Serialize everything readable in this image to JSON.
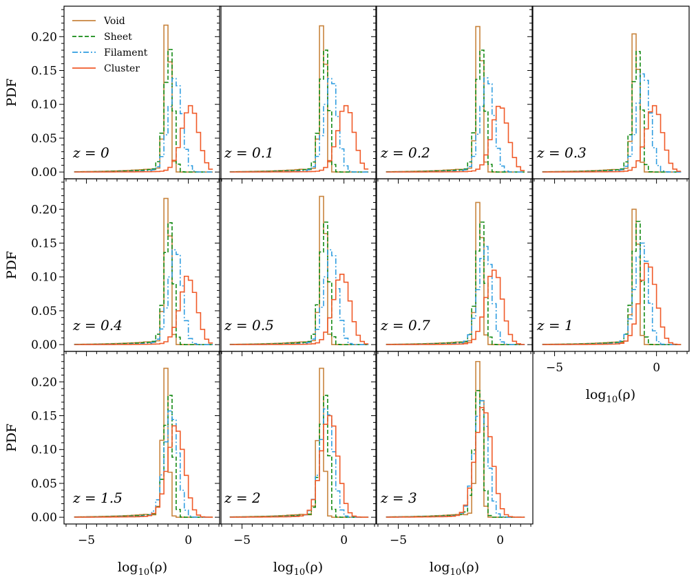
{
  "chart_data": {
    "type": "line",
    "title": "",
    "ylabel": "PDF",
    "xlabel": "log10(ρ)",
    "xlim": [
      -6.1,
      1.6
    ],
    "ylim": [
      -0.01,
      0.245
    ],
    "xticks": [
      -5,
      0
    ],
    "xtick_labels": [
      "−5",
      "0"
    ],
    "yticks": [
      0.0,
      0.05,
      0.1,
      0.15,
      0.2
    ],
    "ytick_labels": [
      "0.00",
      "0.05",
      "0.10",
      "0.15",
      "0.20"
    ],
    "legend": {
      "placement": "upper-left of first panel",
      "entries": [
        {
          "name": "Void",
          "color": "#c8843e",
          "dash": "solid"
        },
        {
          "name": "Sheet",
          "color": "#138a13",
          "dash": "dashed"
        },
        {
          "name": "Filament",
          "color": "#2f9de0",
          "dash": "dashdot"
        },
        {
          "name": "Cluster",
          "color": "#f05a28",
          "dash": "solid"
        }
      ]
    },
    "histogram": {
      "bin_width": 0.2,
      "range": [
        -5.6,
        1.3
      ],
      "style": "step"
    },
    "panels": [
      {
        "label": "z = 0",
        "peaks": {
          "Void": [
            -1.0,
            0.217
          ],
          "Sheet": [
            -0.9,
            0.181
          ],
          "Filament": [
            -0.6,
            0.138
          ],
          "Cluster": [
            0.1,
            0.098
          ]
        }
      },
      {
        "label": "z = 0.1",
        "peaks": {
          "Void": [
            -1.0,
            0.216
          ],
          "Sheet": [
            -0.9,
            0.18
          ],
          "Filament": [
            -0.6,
            0.138
          ],
          "Cluster": [
            0.1,
            0.098
          ]
        }
      },
      {
        "label": "z = 0.2",
        "peaks": {
          "Void": [
            -1.0,
            0.215
          ],
          "Sheet": [
            -0.9,
            0.18
          ],
          "Filament": [
            -0.6,
            0.139
          ],
          "Cluster": [
            0.0,
            0.097
          ]
        }
      },
      {
        "label": "z = 0.3",
        "peaks": {
          "Void": [
            -1.0,
            0.204
          ],
          "Sheet": [
            -0.9,
            0.178
          ],
          "Filament": [
            -0.6,
            0.145
          ],
          "Cluster": [
            -0.1,
            0.098
          ]
        }
      },
      {
        "label": "z = 0.4",
        "peaks": {
          "Void": [
            -1.0,
            0.216
          ],
          "Sheet": [
            -0.9,
            0.18
          ],
          "Filament": [
            -0.6,
            0.14
          ],
          "Cluster": [
            0.0,
            0.101
          ]
        }
      },
      {
        "label": "z = 0.5",
        "peaks": {
          "Void": [
            -1.0,
            0.219
          ],
          "Sheet": [
            -0.9,
            0.181
          ],
          "Filament": [
            -0.6,
            0.14
          ],
          "Cluster": [
            -0.1,
            0.104
          ]
        }
      },
      {
        "label": "z = 0.7",
        "peaks": {
          "Void": [
            -1.0,
            0.21
          ],
          "Sheet": [
            -0.9,
            0.181
          ],
          "Filament": [
            -0.7,
            0.145
          ],
          "Cluster": [
            -0.3,
            0.11
          ]
        }
      },
      {
        "label": "z = 1",
        "peaks": {
          "Void": [
            -1.0,
            0.2
          ],
          "Sheet": [
            -0.9,
            0.182
          ],
          "Filament": [
            -0.7,
            0.15
          ],
          "Cluster": [
            -0.4,
            0.12
          ]
        }
      },
      {
        "label": "z = 1.5",
        "peaks": {
          "Void": [
            -1.1,
            0.22
          ],
          "Sheet": [
            -0.9,
            0.18
          ],
          "Filament": [
            -0.8,
            0.157
          ],
          "Cluster": [
            -0.6,
            0.135
          ]
        }
      },
      {
        "label": "z = 2",
        "peaks": {
          "Void": [
            -1.1,
            0.22
          ],
          "Sheet": [
            -0.9,
            0.18
          ],
          "Filament": [
            -0.8,
            0.16
          ],
          "Cluster": [
            -0.7,
            0.15
          ]
        }
      },
      {
        "label": "z = 3",
        "peaks": {
          "Void": [
            -1.0,
            0.23
          ],
          "Sheet": [
            -1.0,
            0.187
          ],
          "Filament": [
            -0.9,
            0.172
          ],
          "Cluster": [
            -0.8,
            0.162
          ]
        }
      }
    ]
  }
}
